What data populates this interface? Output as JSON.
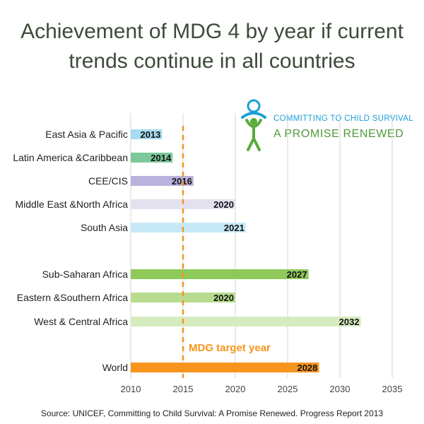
{
  "title_line1": "Achievement of MDG 4 by year if current",
  "title_line2": "trends continue in all countries",
  "logo": {
    "line1": "COMMITTING TO CHILD SURVIVAL",
    "line2": "A PROMISE RENEWED"
  },
  "source": "Source: UNICEF, Committing to Child Survival: A Promise Renewed.  Progress Report 2013",
  "chart_data": {
    "type": "bar",
    "orientation": "horizontal",
    "xlim": [
      2010,
      2035
    ],
    "xticks": [
      2010,
      2015,
      2020,
      2025,
      2030,
      2035
    ],
    "grid": "vertical",
    "target": {
      "value": 2015,
      "label": "MDG target year",
      "color": "#f7941d"
    },
    "categories": [
      "East Asia & Pacific",
      "Latin America &Caribbean",
      "CEE/CIS",
      "Middle East &North Africa",
      "South Asia",
      "Sub-Saharan Africa",
      "Eastern &Southern Africa",
      "West & Central Africa",
      "World"
    ],
    "values": [
      2013,
      2014,
      2016,
      2020,
      2021,
      2027,
      2020,
      2032,
      2028
    ],
    "colors": [
      "#a6dcf0",
      "#7cc89a",
      "#b9b2dd",
      "#e4e1ef",
      "#c7e9f7",
      "#8ec95a",
      "#b7dc8f",
      "#d6ecbf",
      "#f7941d"
    ]
  }
}
